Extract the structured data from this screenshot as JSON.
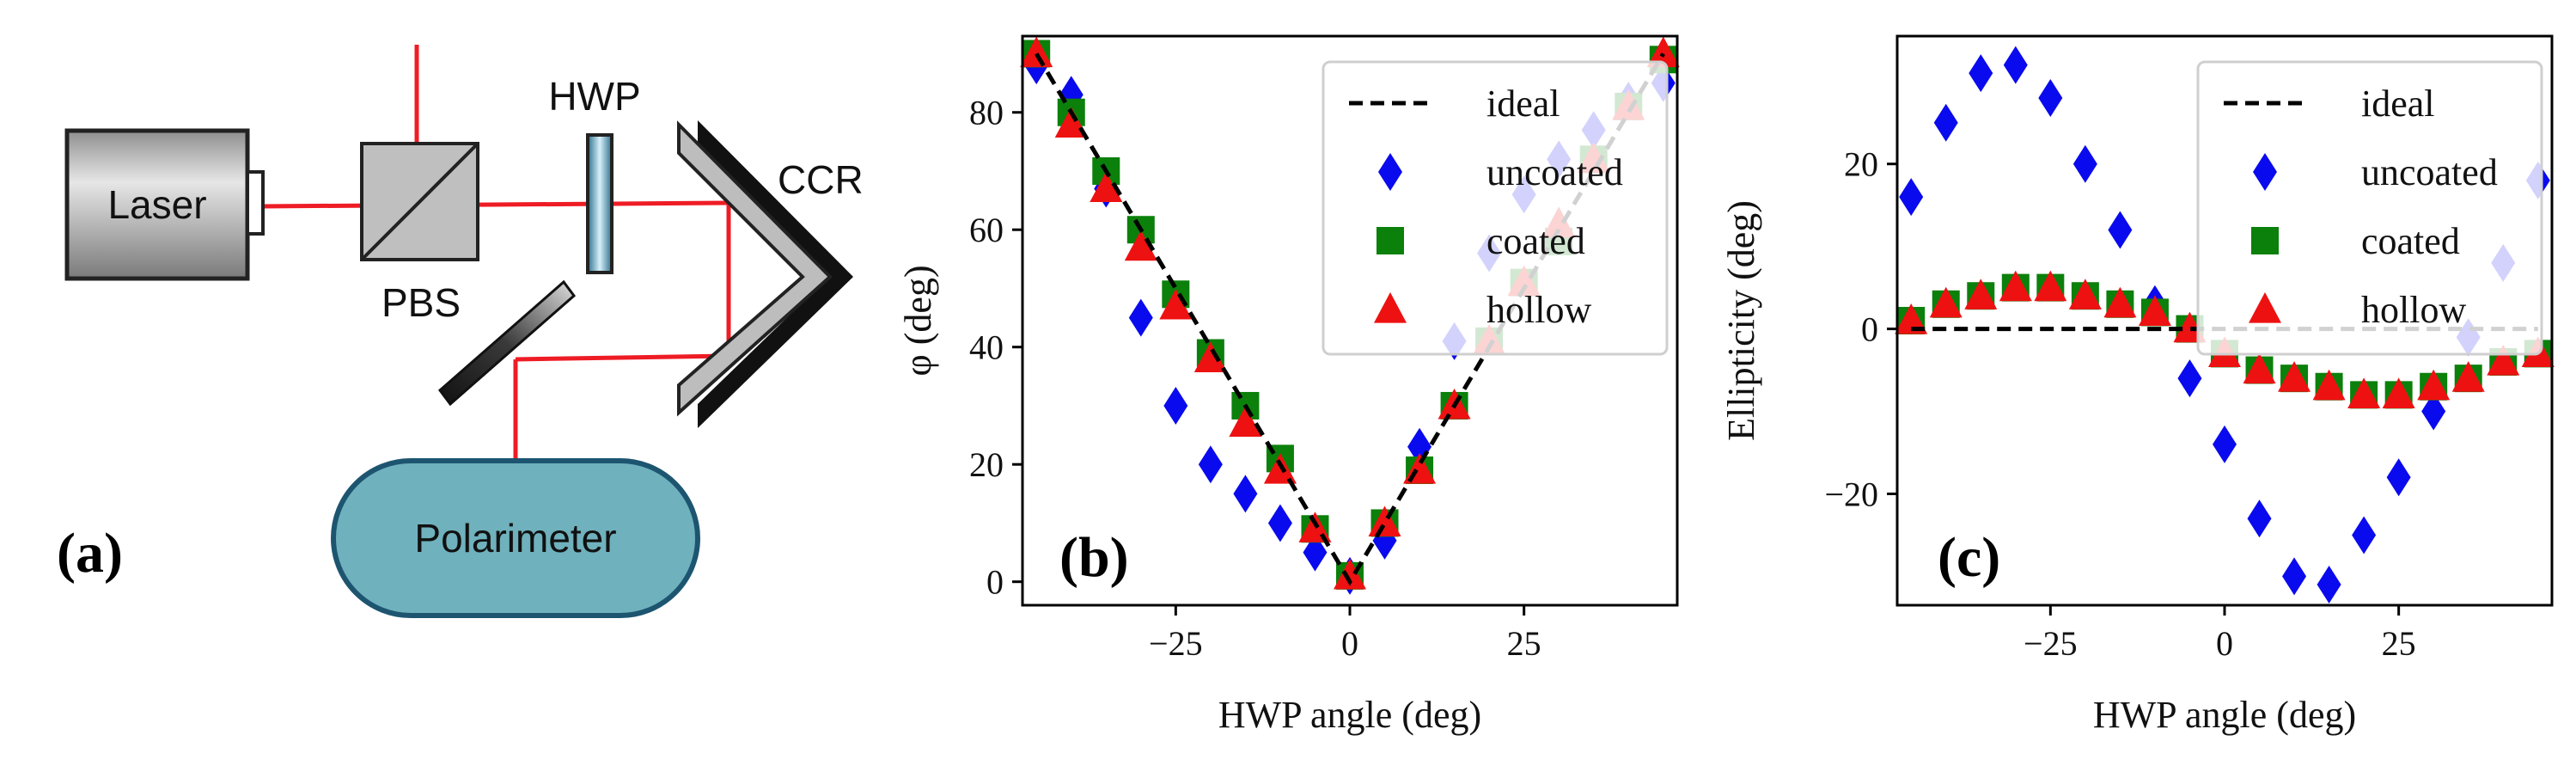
{
  "colors": {
    "beam": "#ee1c25",
    "uncoated": "#0a0aee",
    "coated": "#0b800b",
    "hollow": "#ee1111",
    "ideal": "#000000",
    "polarimeter_fill": "#6fb1bd",
    "polarimeter_stroke": "#1d5570"
  },
  "panel_a": {
    "tag": "(a)",
    "laser": "Laser",
    "pbs": "PBS",
    "hwp": "HWP",
    "ccr": "CCR",
    "polarimeter": "Polarimeter"
  },
  "chart_data": [
    {
      "type": "scatter",
      "panel_tag": "(b)",
      "xlabel": "HWP angle (deg)",
      "ylabel": "φ (deg)",
      "xlim": [
        -47,
        47
      ],
      "ylim": [
        -4,
        93
      ],
      "xticks": [
        -25,
        0,
        25
      ],
      "xtick_labels": [
        "−25",
        "0",
        "25"
      ],
      "yticks": [
        0,
        20,
        40,
        60,
        80
      ],
      "ytick_labels": [
        "0",
        "20",
        "40",
        "60",
        "80"
      ],
      "legend_position": "top-right",
      "x": [
        -45,
        -40,
        -35,
        -30,
        -25,
        -20,
        -15,
        -10,
        -5,
        0,
        5,
        10,
        15,
        20,
        25,
        30,
        35,
        40,
        45
      ],
      "series": [
        {
          "name": "ideal",
          "marker": "dashed-line",
          "values": [
            90,
            80,
            70,
            60,
            50,
            40,
            30,
            20,
            10,
            0,
            10,
            20,
            30,
            40,
            50,
            60,
            70,
            80,
            90
          ]
        },
        {
          "name": "uncoated",
          "marker": "diamond",
          "values": [
            88,
            83,
            67,
            45,
            30,
            20,
            15,
            10,
            5,
            1,
            7,
            23,
            41,
            56,
            66,
            72,
            77,
            82,
            85
          ]
        },
        {
          "name": "coated",
          "marker": "square",
          "values": [
            90,
            80,
            70,
            60,
            49,
            39,
            30,
            21,
            9,
            1,
            10,
            19,
            30,
            41,
            51,
            58,
            72,
            81,
            89
          ]
        },
        {
          "name": "hollow",
          "marker": "triangle",
          "values": [
            90,
            78,
            67,
            57,
            47,
            38,
            27,
            19,
            9,
            1,
            10,
            19,
            30,
            41,
            51,
            61,
            72,
            81,
            90
          ]
        }
      ]
    },
    {
      "type": "scatter",
      "panel_tag": "(c)",
      "xlabel": "HWP angle (deg)",
      "ylabel": "Ellipticity (deg)",
      "xlim": [
        -47,
        47
      ],
      "ylim": [
        -33.5,
        35.5
      ],
      "xticks": [
        -25,
        0,
        25
      ],
      "xtick_labels": [
        "−25",
        "0",
        "25"
      ],
      "yticks": [
        -20,
        0,
        20
      ],
      "ytick_labels": [
        "−20",
        "0",
        "20"
      ],
      "legend_position": "top-right",
      "x": [
        -45,
        -40,
        -35,
        -30,
        -25,
        -20,
        -15,
        -10,
        -5,
        0,
        5,
        10,
        15,
        20,
        25,
        30,
        35,
        40,
        45
      ],
      "series": [
        {
          "name": "ideal",
          "marker": "dashed-line",
          "values": [
            0,
            0,
            0,
            0,
            0,
            0,
            0,
            0,
            0,
            0,
            0,
            0,
            0,
            0,
            0,
            0,
            0,
            0,
            0
          ]
        },
        {
          "name": "uncoated",
          "marker": "diamond",
          "values": [
            16,
            25,
            31,
            32,
            28,
            20,
            12,
            3,
            -6,
            -14,
            -23,
            -30,
            -31,
            -25,
            -18,
            -10,
            -1,
            8,
            18
          ]
        },
        {
          "name": "coated",
          "marker": "square",
          "values": [
            1,
            3,
            4,
            5,
            5,
            4,
            3,
            2,
            0,
            -3,
            -5,
            -6,
            -7,
            -8,
            -8,
            -7,
            -6,
            -4,
            -3
          ]
        },
        {
          "name": "hollow",
          "marker": "triangle",
          "values": [
            1,
            3,
            4,
            5,
            5,
            4,
            3,
            2,
            0,
            -3,
            -5,
            -6,
            -7,
            -8,
            -8,
            -7,
            -6,
            -4,
            -3
          ]
        }
      ]
    }
  ]
}
